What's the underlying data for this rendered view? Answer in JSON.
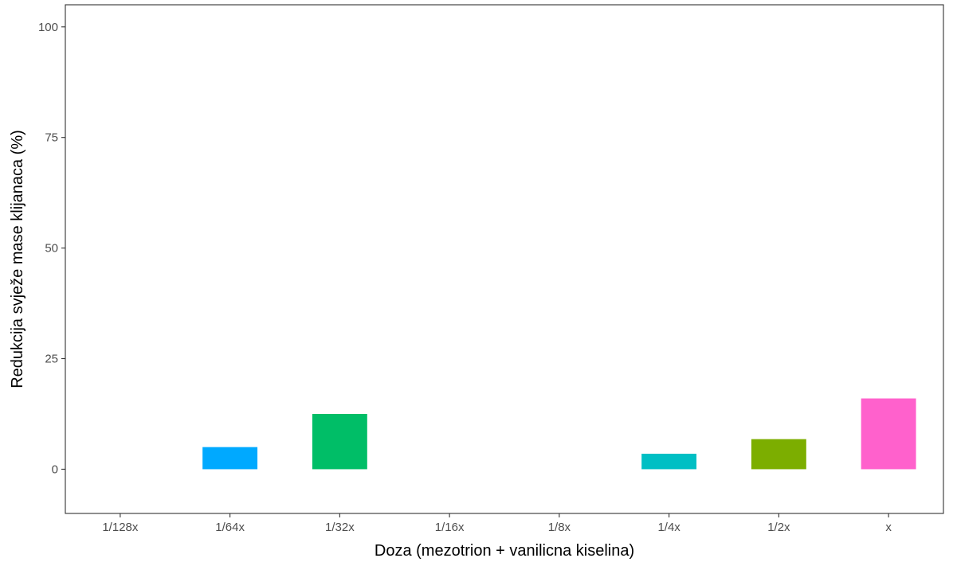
{
  "chart_data": {
    "type": "bar",
    "title": "",
    "xlabel": "Doza (mezotrion + vanilicna kiselina)",
    "ylabel": "Redukcija svježe mase klijanaca (%)",
    "categories": [
      "1/128x",
      "1/64x",
      "1/32x",
      "1/16x",
      "1/8x",
      "1/4x",
      "1/2x",
      "x"
    ],
    "values": [
      0,
      5,
      12.5,
      0,
      0,
      3.5,
      6.8,
      16
    ],
    "colors": [
      "#F8766D",
      "#00A9FF",
      "#00BE67",
      "#CD9600",
      "#C77CFF",
      "#00BFC4",
      "#7CAE00",
      "#FF61CC"
    ],
    "ylim": [
      -10,
      105
    ],
    "yticks": [
      0,
      25,
      50,
      75,
      100
    ],
    "grid": false,
    "legend": "none"
  }
}
